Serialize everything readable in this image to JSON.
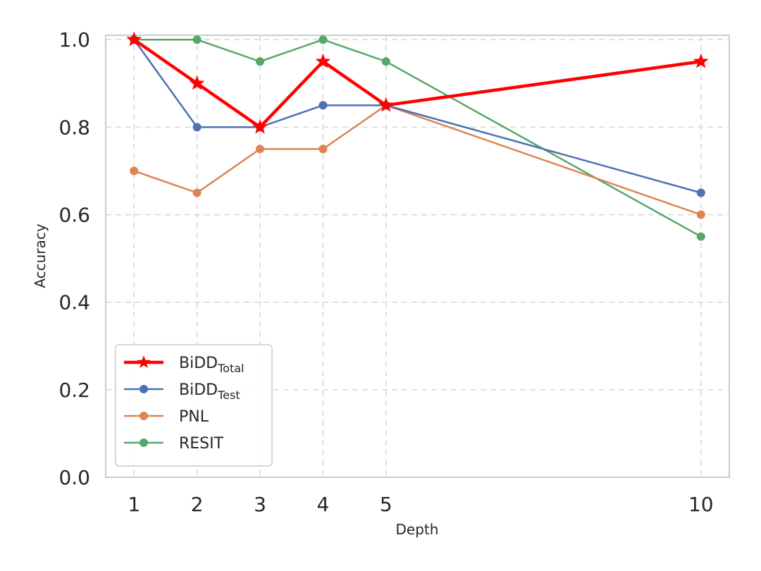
{
  "chart_data": {
    "type": "line",
    "title": "",
    "xlabel": "Depth",
    "ylabel": "Accuracy",
    "x": [
      1,
      2,
      3,
      4,
      5,
      10
    ],
    "xticks": [
      "1",
      "2",
      "3",
      "4",
      "5",
      "10"
    ],
    "yticks": [
      "0.0",
      "0.2",
      "0.4",
      "0.6",
      "0.8",
      "1.0"
    ],
    "xlim": [
      0.55,
      10.45
    ],
    "ylim": [
      0.0,
      1.01
    ],
    "grid": true,
    "legend_position": "lower-left",
    "series": [
      {
        "name": "BiDD",
        "sub": "Total",
        "color": "#ff0000",
        "marker": "star",
        "linewidth": 4.5,
        "values": [
          1.0,
          0.9,
          0.8,
          0.95,
          0.85,
          0.95
        ]
      },
      {
        "name": "BiDD",
        "sub": "Test",
        "color": "#4c72b0",
        "marker": "circle",
        "linewidth": 2.5,
        "values": [
          1.0,
          0.8,
          0.8,
          0.85,
          0.85,
          0.65
        ]
      },
      {
        "name": "PNL",
        "sub": "",
        "color": "#dd8452",
        "marker": "circle",
        "linewidth": 2.5,
        "values": [
          0.7,
          0.65,
          0.75,
          0.75,
          0.85,
          0.6
        ]
      },
      {
        "name": "RESIT",
        "sub": "",
        "color": "#55a868",
        "marker": "circle",
        "linewidth": 2.5,
        "values": [
          1.0,
          1.0,
          0.95,
          1.0,
          0.95,
          0.55
        ]
      }
    ]
  }
}
